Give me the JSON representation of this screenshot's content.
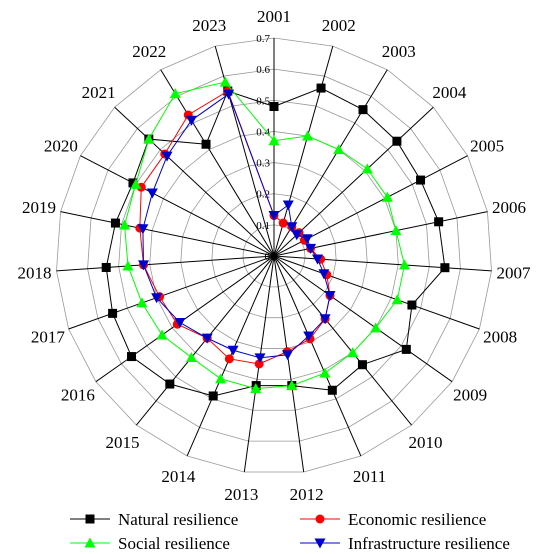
{
  "chart_data": {
    "type": "radar",
    "categories": [
      "2001",
      "2002",
      "2003",
      "2004",
      "2005",
      "2006",
      "2007",
      "2008",
      "2009",
      "2010",
      "2011",
      "2012",
      "2013",
      "2014",
      "2015",
      "2016",
      "2017",
      "2018",
      "2019",
      "2020",
      "2021",
      "2022",
      "2023"
    ],
    "radial_ticks": [
      "0",
      "0.1",
      "0.2",
      "0.3",
      "0.4",
      "0.5",
      "0.6",
      "0.7"
    ],
    "rlim": [
      0,
      0.7
    ],
    "grid": true,
    "legend_position": "bottom",
    "series": [
      {
        "name": "Natural resilience",
        "color": "#000000",
        "marker": "square",
        "values": [
          0.48,
          0.56,
          0.55,
          0.54,
          0.53,
          0.54,
          0.55,
          0.47,
          0.52,
          0.45,
          0.47,
          0.42,
          0.42,
          0.49,
          0.53,
          0.56,
          0.55,
          0.54,
          0.52,
          0.51,
          0.55,
          0.42,
          0.55
        ]
      },
      {
        "name": "Economic resilience",
        "color": "#ff0000",
        "marker": "circle",
        "values": [
          0.13,
          0.11,
          0.11,
          0.11,
          0.11,
          0.12,
          0.15,
          0.18,
          0.22,
          0.26,
          0.29,
          0.31,
          0.35,
          0.36,
          0.34,
          0.38,
          0.39,
          0.42,
          0.44,
          0.48,
          0.48,
          0.53,
          0.55
        ]
      },
      {
        "name": "Social resilience",
        "color": "#00ff00",
        "marker": "triangle-up",
        "values": [
          0.37,
          0.4,
          0.4,
          0.41,
          0.41,
          0.4,
          0.42,
          0.42,
          0.4,
          0.4,
          0.41,
          0.42,
          0.43,
          0.43,
          0.42,
          0.44,
          0.45,
          0.47,
          0.49,
          0.5,
          0.55,
          0.61,
          0.58
        ]
      },
      {
        "name": "Infrastructure resilience",
        "color": "#0000cc",
        "marker": "triangle-down",
        "values": [
          0.13,
          0.17,
          0.11,
          0.1,
          0.12,
          0.12,
          0.14,
          0.17,
          0.22,
          0.26,
          0.28,
          0.32,
          0.33,
          0.33,
          0.34,
          0.37,
          0.4,
          0.42,
          0.43,
          0.44,
          0.47,
          0.51,
          0.54
        ]
      }
    ]
  }
}
